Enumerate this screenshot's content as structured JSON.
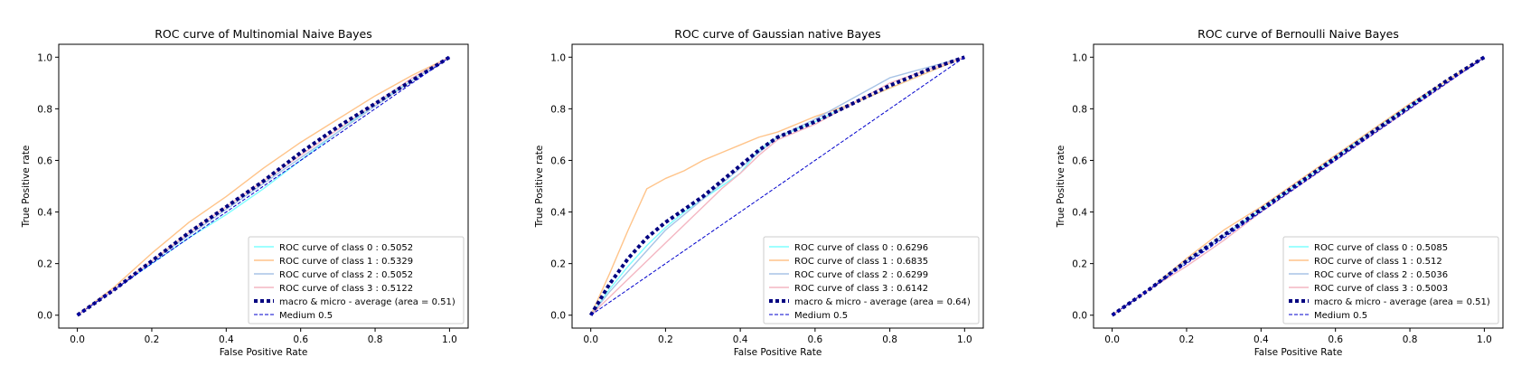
{
  "figure": {
    "background": "#ffffff"
  },
  "chart_data": [
    {
      "type": "line",
      "title": "ROC curve of Multinomial Naive Bayes",
      "xlabel": "False Positive Rate",
      "ylabel": "True Positive rate",
      "xlim": [
        -0.05,
        1.05
      ],
      "ylim": [
        -0.05,
        1.05
      ],
      "xticks": [
        "0.0",
        "0.2",
        "0.4",
        "0.6",
        "0.8",
        "1.0"
      ],
      "yticks": [
        "0.0",
        "0.2",
        "0.4",
        "0.6",
        "0.8",
        "1.0"
      ],
      "grid": false,
      "legend_position": "lower right",
      "series": [
        {
          "name": "ROC curve of class 0 : 0.5052",
          "color": "#7fffff",
          "style": "solid",
          "x": [
            0,
            0.1,
            0.2,
            0.3,
            0.4,
            0.5,
            0.6,
            0.7,
            0.8,
            0.9,
            1.0
          ],
          "y": [
            0,
            0.1,
            0.2,
            0.3,
            0.39,
            0.49,
            0.6,
            0.71,
            0.82,
            0.91,
            1.0
          ]
        },
        {
          "name": "ROC curve of class 1 : 0.5329",
          "color": "#ffc48a",
          "style": "solid",
          "x": [
            0,
            0.1,
            0.2,
            0.3,
            0.4,
            0.5,
            0.6,
            0.7,
            0.8,
            0.9,
            1.0
          ],
          "y": [
            0,
            0.11,
            0.24,
            0.36,
            0.46,
            0.57,
            0.67,
            0.76,
            0.85,
            0.93,
            1.0
          ]
        },
        {
          "name": "ROC curve of class 2 : 0.5052",
          "color": "#a9c4e6",
          "style": "solid",
          "x": [
            0,
            0.1,
            0.2,
            0.3,
            0.4,
            0.5,
            0.6,
            0.7,
            0.8,
            0.9,
            1.0
          ],
          "y": [
            0,
            0.1,
            0.21,
            0.31,
            0.41,
            0.51,
            0.61,
            0.71,
            0.81,
            0.91,
            1.0
          ]
        },
        {
          "name": "ROC curve of class 3 : 0.5122",
          "color": "#f4b6c2",
          "style": "solid",
          "x": [
            0,
            0.1,
            0.2,
            0.3,
            0.4,
            0.5,
            0.6,
            0.7,
            0.8,
            0.9,
            1.0
          ],
          "y": [
            0,
            0.1,
            0.21,
            0.32,
            0.42,
            0.52,
            0.62,
            0.72,
            0.82,
            0.92,
            1.0
          ]
        },
        {
          "name": "macro & micro - average (area = 0.51)",
          "color": "#000080",
          "style": "dotted",
          "x": [
            0,
            0.1,
            0.2,
            0.3,
            0.4,
            0.5,
            0.6,
            0.7,
            0.8,
            0.9,
            1.0
          ],
          "y": [
            0,
            0.1,
            0.21,
            0.32,
            0.42,
            0.52,
            0.63,
            0.73,
            0.82,
            0.91,
            1.0
          ]
        },
        {
          "name": "Medium 0.5",
          "color": "#0000cc",
          "style": "dashed",
          "x": [
            0,
            1
          ],
          "y": [
            0,
            1
          ]
        }
      ]
    },
    {
      "type": "line",
      "title": "ROC curve of Gaussian native Bayes",
      "xlabel": "False Positive Rate",
      "ylabel": "True Positive rate",
      "xlim": [
        -0.05,
        1.05
      ],
      "ylim": [
        -0.05,
        1.05
      ],
      "xticks": [
        "0.0",
        "0.2",
        "0.4",
        "0.6",
        "0.8",
        "1.0"
      ],
      "yticks": [
        "0.0",
        "0.2",
        "0.4",
        "0.6",
        "0.8",
        "1.0"
      ],
      "grid": false,
      "legend_position": "lower right",
      "series": [
        {
          "name": "ROC curve of class 0 : 0.6296",
          "color": "#7fffff",
          "style": "solid",
          "x": [
            0,
            0.05,
            0.1,
            0.15,
            0.2,
            0.25,
            0.3,
            0.35,
            0.4,
            0.45,
            0.5,
            0.6,
            0.7,
            0.8,
            0.9,
            1.0
          ],
          "y": [
            0,
            0.1,
            0.19,
            0.27,
            0.34,
            0.4,
            0.45,
            0.5,
            0.55,
            0.64,
            0.69,
            0.75,
            0.82,
            0.88,
            0.94,
            1.0
          ]
        },
        {
          "name": "ROC curve of class 1 : 0.6835",
          "color": "#ffc48a",
          "style": "solid",
          "x": [
            0,
            0.05,
            0.1,
            0.15,
            0.2,
            0.25,
            0.3,
            0.35,
            0.4,
            0.45,
            0.5,
            0.6,
            0.7,
            0.8,
            0.9,
            1.0
          ],
          "y": [
            0,
            0.16,
            0.33,
            0.49,
            0.53,
            0.56,
            0.6,
            0.63,
            0.66,
            0.69,
            0.71,
            0.77,
            0.82,
            0.88,
            0.94,
            1.0
          ]
        },
        {
          "name": "ROC curve of class 2 : 0.6299",
          "color": "#a9c4e6",
          "style": "solid",
          "x": [
            0,
            0.05,
            0.1,
            0.15,
            0.2,
            0.25,
            0.3,
            0.35,
            0.4,
            0.45,
            0.5,
            0.6,
            0.7,
            0.8,
            0.9,
            1.0
          ],
          "y": [
            0,
            0.09,
            0.17,
            0.25,
            0.33,
            0.39,
            0.45,
            0.51,
            0.57,
            0.63,
            0.69,
            0.76,
            0.84,
            0.92,
            0.96,
            1.0
          ]
        },
        {
          "name": "ROC curve of class 3 : 0.6142",
          "color": "#f4b6c2",
          "style": "solid",
          "x": [
            0,
            0.05,
            0.1,
            0.15,
            0.2,
            0.25,
            0.3,
            0.35,
            0.4,
            0.45,
            0.5,
            0.6,
            0.7,
            0.8,
            0.9,
            1.0
          ],
          "y": [
            0,
            0.07,
            0.14,
            0.21,
            0.28,
            0.35,
            0.42,
            0.49,
            0.55,
            0.62,
            0.68,
            0.74,
            0.82,
            0.9,
            0.95,
            1.0
          ]
        },
        {
          "name": "macro & micro - average (area = 0.64)",
          "color": "#000080",
          "style": "dotted",
          "x": [
            0,
            0.05,
            0.1,
            0.15,
            0.2,
            0.25,
            0.3,
            0.35,
            0.4,
            0.45,
            0.5,
            0.6,
            0.7,
            0.8,
            0.9,
            1.0
          ],
          "y": [
            0,
            0.12,
            0.22,
            0.3,
            0.36,
            0.41,
            0.46,
            0.52,
            0.58,
            0.64,
            0.69,
            0.75,
            0.82,
            0.89,
            0.95,
            1.0
          ]
        },
        {
          "name": "Medium 0.5",
          "color": "#0000cc",
          "style": "dashed",
          "x": [
            0,
            1
          ],
          "y": [
            0,
            1
          ]
        }
      ]
    },
    {
      "type": "line",
      "title": "ROC curve of Bernoulli Naive Bayes",
      "xlabel": "False Positive Rate",
      "ylabel": "True Positive rate",
      "xlim": [
        -0.05,
        1.05
      ],
      "ylim": [
        -0.05,
        1.05
      ],
      "xticks": [
        "0.0",
        "0.2",
        "0.4",
        "0.6",
        "0.8",
        "1.0"
      ],
      "yticks": [
        "0.0",
        "0.2",
        "0.4",
        "0.6",
        "0.8",
        "1.0"
      ],
      "grid": false,
      "legend_position": "lower right",
      "series": [
        {
          "name": "ROC curve of class 0 : 0.5085",
          "color": "#7fffff",
          "style": "solid",
          "x": [
            0,
            0.1,
            0.2,
            0.3,
            0.4,
            0.5,
            0.6,
            0.7,
            0.8,
            0.9,
            1.0
          ],
          "y": [
            0,
            0.1,
            0.21,
            0.31,
            0.41,
            0.51,
            0.61,
            0.72,
            0.81,
            0.91,
            1.0
          ]
        },
        {
          "name": "ROC curve of class 1 : 0.512",
          "color": "#ffc48a",
          "style": "solid",
          "x": [
            0,
            0.1,
            0.2,
            0.3,
            0.4,
            0.5,
            0.6,
            0.7,
            0.8,
            0.9,
            1.0
          ],
          "y": [
            0,
            0.1,
            0.22,
            0.33,
            0.42,
            0.52,
            0.62,
            0.72,
            0.82,
            0.91,
            1.0
          ]
        },
        {
          "name": "ROC curve of class 2 : 0.5036",
          "color": "#a9c4e6",
          "style": "solid",
          "x": [
            0,
            0.1,
            0.2,
            0.3,
            0.4,
            0.5,
            0.6,
            0.7,
            0.8,
            0.9,
            1.0
          ],
          "y": [
            0,
            0.1,
            0.21,
            0.31,
            0.4,
            0.5,
            0.6,
            0.71,
            0.8,
            0.9,
            1.0
          ]
        },
        {
          "name": "ROC curve of class 3 : 0.5003",
          "color": "#f4b6c2",
          "style": "solid",
          "x": [
            0,
            0.1,
            0.2,
            0.3,
            0.4,
            0.5,
            0.6,
            0.7,
            0.8,
            0.9,
            1.0
          ],
          "y": [
            0,
            0.1,
            0.19,
            0.29,
            0.4,
            0.5,
            0.6,
            0.7,
            0.8,
            0.9,
            1.0
          ]
        },
        {
          "name": "macro & micro - average (area = 0.51)",
          "color": "#000080",
          "style": "dotted",
          "x": [
            0,
            0.1,
            0.2,
            0.3,
            0.4,
            0.5,
            0.6,
            0.7,
            0.8,
            0.9,
            1.0
          ],
          "y": [
            0,
            0.1,
            0.21,
            0.31,
            0.41,
            0.51,
            0.61,
            0.71,
            0.81,
            0.91,
            1.0
          ]
        },
        {
          "name": "Medium 0.5",
          "color": "#0000cc",
          "style": "dashed",
          "x": [
            0,
            1
          ],
          "y": [
            0,
            1
          ]
        }
      ]
    }
  ]
}
